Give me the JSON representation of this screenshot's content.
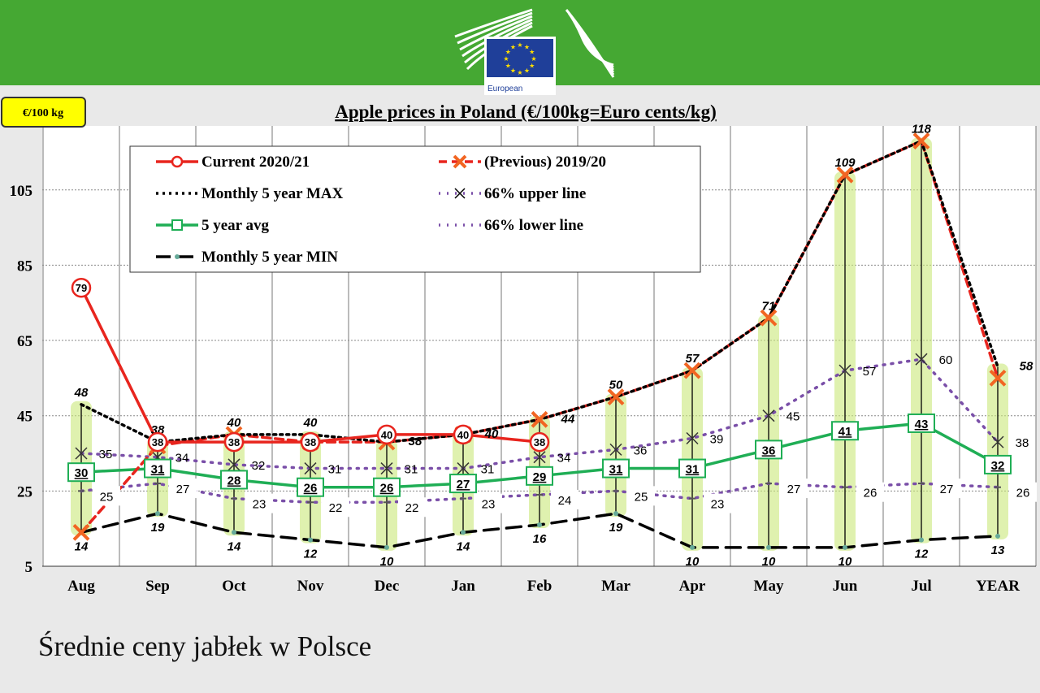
{
  "logo": {
    "text": "European Commission",
    "flag_color": "#1f3f99",
    "star_color": "#ffdd00"
  },
  "banner_color": "#45a833",
  "unit_badge": "€/100 kg",
  "caption": "Średnie ceny jabłek w Polsce",
  "chart_data": {
    "type": "line",
    "title": "Apple prices in Poland (€/100kg=Euro cents/kg)",
    "ylabel": "€/100 kg",
    "categories": [
      "Aug",
      "Sep",
      "Oct",
      "Nov",
      "Dec",
      "Jan",
      "Feb",
      "Mar",
      "Apr",
      "May",
      "Jun",
      "Jul",
      "YEAR"
    ],
    "yticks": [
      5,
      25,
      45,
      65,
      85,
      105
    ],
    "ylim": [
      5,
      122
    ],
    "grid": true,
    "legend_position": "top-left",
    "series": [
      {
        "name": "Current 2020/21",
        "color": "#e8251e",
        "values": [
          79,
          38,
          38,
          38,
          40,
          40,
          38,
          null,
          null,
          null,
          null,
          null,
          null
        ]
      },
      {
        "name": "(Previous) 2019/20",
        "color": "#e8251e",
        "values": [
          14,
          37,
          40,
          38,
          38,
          40,
          44,
          50,
          57,
          71,
          109,
          118,
          55
        ]
      },
      {
        "name": "Monthly 5 year MAX",
        "color": "#000000",
        "values": [
          48,
          38,
          40,
          40,
          38,
          40,
          44,
          50,
          57,
          71,
          109,
          118,
          58
        ]
      },
      {
        "name": "66% upper line",
        "color": "#7a4fa8",
        "values": [
          35,
          34,
          32,
          31,
          31,
          31,
          34,
          36,
          39,
          45,
          57,
          60,
          38
        ]
      },
      {
        "name": "5 year avg",
        "color": "#1fae55",
        "values": [
          30,
          31,
          28,
          26,
          26,
          27,
          29,
          31,
          31,
          36,
          41,
          43,
          32
        ]
      },
      {
        "name": "66% lower line",
        "color": "#7a4fa8",
        "values": [
          25,
          27,
          23,
          22,
          22,
          23,
          24,
          25,
          23,
          27,
          26,
          27,
          26
        ]
      },
      {
        "name": "Monthly 5 year MIN",
        "color": "#000000",
        "values": [
          14,
          19,
          14,
          12,
          10,
          14,
          16,
          19,
          10,
          10,
          10,
          12,
          13
        ]
      }
    ]
  }
}
